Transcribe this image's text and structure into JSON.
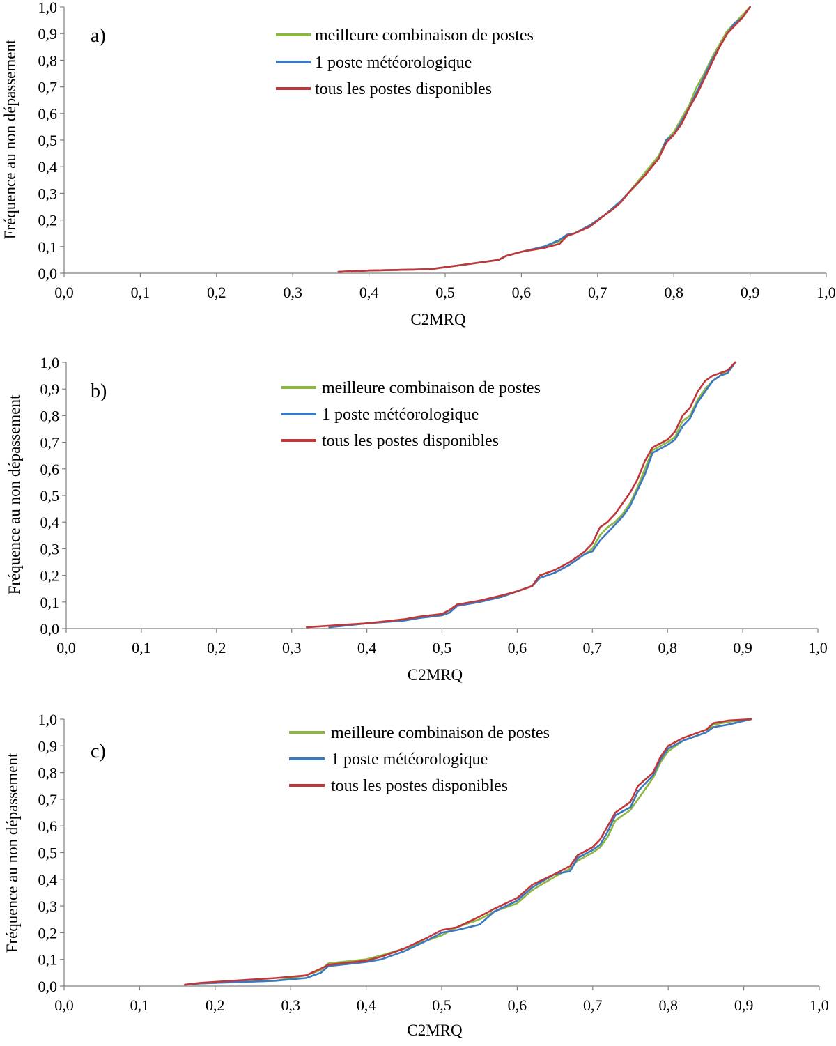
{
  "colors": {
    "green": "#8DB744",
    "blue": "#3A79C0",
    "red": "#C0373A"
  },
  "chart_data": [
    {
      "type": "line",
      "panel_label": "a)",
      "xlabel": "C2MRQ",
      "ylabel": "Fréquence au non dépassement",
      "xlim": [
        0,
        1
      ],
      "ylim": [
        0,
        1
      ],
      "x_ticks": [
        "0,0",
        "0,1",
        "0,2",
        "0,3",
        "0,4",
        "0,5",
        "0,6",
        "0,7",
        "0,8",
        "0,9",
        "1,0"
      ],
      "y_ticks": [
        "0,0",
        "0,1",
        "0,2",
        "0,3",
        "0,4",
        "0,5",
        "0,6",
        "0,7",
        "0,8",
        "0,9",
        "1,0"
      ],
      "legend_position": "top-center",
      "series": [
        {
          "name": "meilleure combinaison de postes",
          "color": "#8DB744",
          "x": [
            0.36,
            0.4,
            0.48,
            0.52,
            0.57,
            0.58,
            0.6,
            0.63,
            0.65,
            0.66,
            0.67,
            0.69,
            0.71,
            0.72,
            0.73,
            0.74,
            0.76,
            0.78,
            0.79,
            0.8,
            0.81,
            0.82,
            0.83,
            0.84,
            0.85,
            0.86,
            0.87,
            0.88,
            0.89,
            0.9
          ],
          "y": [
            0.005,
            0.01,
            0.015,
            0.03,
            0.05,
            0.065,
            0.08,
            0.1,
            0.12,
            0.14,
            0.15,
            0.18,
            0.22,
            0.24,
            0.27,
            0.3,
            0.37,
            0.44,
            0.5,
            0.53,
            0.58,
            0.63,
            0.7,
            0.75,
            0.81,
            0.86,
            0.91,
            0.94,
            0.97,
            1.0
          ]
        },
        {
          "name": "1 poste météorologique",
          "color": "#3A79C0",
          "x": [
            0.36,
            0.4,
            0.48,
            0.52,
            0.57,
            0.58,
            0.6,
            0.63,
            0.65,
            0.66,
            0.67,
            0.69,
            0.71,
            0.72,
            0.73,
            0.74,
            0.76,
            0.78,
            0.79,
            0.8,
            0.81,
            0.82,
            0.83,
            0.84,
            0.85,
            0.86,
            0.87,
            0.88,
            0.89,
            0.9
          ],
          "y": [
            0.005,
            0.01,
            0.015,
            0.03,
            0.05,
            0.065,
            0.08,
            0.1,
            0.125,
            0.145,
            0.15,
            0.18,
            0.22,
            0.245,
            0.27,
            0.3,
            0.36,
            0.43,
            0.5,
            0.52,
            0.57,
            0.62,
            0.68,
            0.74,
            0.8,
            0.85,
            0.9,
            0.94,
            0.96,
            1.0
          ]
        },
        {
          "name": "tous les postes disponibles",
          "color": "#C0373A",
          "x": [
            0.36,
            0.4,
            0.48,
            0.52,
            0.57,
            0.58,
            0.6,
            0.63,
            0.65,
            0.66,
            0.67,
            0.69,
            0.71,
            0.72,
            0.73,
            0.74,
            0.76,
            0.78,
            0.79,
            0.8,
            0.81,
            0.82,
            0.83,
            0.84,
            0.85,
            0.86,
            0.87,
            0.88,
            0.89,
            0.9
          ],
          "y": [
            0.005,
            0.01,
            0.015,
            0.03,
            0.05,
            0.065,
            0.08,
            0.095,
            0.11,
            0.14,
            0.15,
            0.175,
            0.22,
            0.24,
            0.265,
            0.3,
            0.36,
            0.43,
            0.49,
            0.52,
            0.56,
            0.62,
            0.67,
            0.73,
            0.79,
            0.85,
            0.9,
            0.93,
            0.96,
            1.0
          ]
        }
      ]
    },
    {
      "type": "line",
      "panel_label": "b)",
      "xlabel": "C2MRQ",
      "ylabel": "Fréquence au non dépassement",
      "xlim": [
        0,
        1
      ],
      "ylim": [
        0,
        1
      ],
      "x_ticks": [
        "0,0",
        "0,1",
        "0,2",
        "0,3",
        "0,4",
        "0,5",
        "0,6",
        "0,7",
        "0,8",
        "0,9",
        "1,0"
      ],
      "y_ticks": [
        "0,0",
        "0,1",
        "0,2",
        "0,3",
        "0,4",
        "0,5",
        "0,6",
        "0,7",
        "0,8",
        "0,9",
        "1,0"
      ],
      "legend_position": "top-center",
      "series": [
        {
          "name": "meilleure combinaison de postes",
          "color": "#8DB744",
          "x": [
            0.35,
            0.4,
            0.45,
            0.47,
            0.5,
            0.51,
            0.52,
            0.55,
            0.58,
            0.6,
            0.62,
            0.63,
            0.65,
            0.67,
            0.68,
            0.69,
            0.7,
            0.71,
            0.72,
            0.73,
            0.74,
            0.75,
            0.76,
            0.77,
            0.78,
            0.8,
            0.81,
            0.82,
            0.83,
            0.84,
            0.85,
            0.86,
            0.87,
            0.88,
            0.89
          ],
          "y": [
            0.005,
            0.02,
            0.03,
            0.04,
            0.05,
            0.06,
            0.09,
            0.1,
            0.12,
            0.14,
            0.16,
            0.19,
            0.21,
            0.24,
            0.26,
            0.28,
            0.3,
            0.35,
            0.38,
            0.4,
            0.43,
            0.47,
            0.53,
            0.6,
            0.67,
            0.7,
            0.72,
            0.78,
            0.8,
            0.86,
            0.9,
            0.93,
            0.95,
            0.97,
            1.0
          ]
        },
        {
          "name": "1 poste météorologique",
          "color": "#3A79C0",
          "x": [
            0.35,
            0.4,
            0.45,
            0.47,
            0.5,
            0.51,
            0.52,
            0.55,
            0.58,
            0.6,
            0.62,
            0.63,
            0.65,
            0.67,
            0.68,
            0.69,
            0.7,
            0.71,
            0.72,
            0.73,
            0.74,
            0.75,
            0.76,
            0.77,
            0.78,
            0.8,
            0.81,
            0.82,
            0.83,
            0.84,
            0.85,
            0.86,
            0.87,
            0.88,
            0.89
          ],
          "y": [
            0.005,
            0.02,
            0.03,
            0.04,
            0.05,
            0.06,
            0.085,
            0.1,
            0.12,
            0.14,
            0.16,
            0.19,
            0.21,
            0.24,
            0.26,
            0.28,
            0.29,
            0.33,
            0.36,
            0.39,
            0.42,
            0.46,
            0.52,
            0.58,
            0.66,
            0.69,
            0.71,
            0.76,
            0.79,
            0.85,
            0.89,
            0.93,
            0.95,
            0.96,
            1.0
          ]
        },
        {
          "name": "tous les postes disponibles",
          "color": "#C0373A",
          "x": [
            0.32,
            0.4,
            0.45,
            0.47,
            0.5,
            0.51,
            0.52,
            0.55,
            0.58,
            0.6,
            0.62,
            0.63,
            0.65,
            0.67,
            0.68,
            0.69,
            0.7,
            0.71,
            0.72,
            0.73,
            0.74,
            0.75,
            0.76,
            0.77,
            0.78,
            0.8,
            0.81,
            0.82,
            0.83,
            0.84,
            0.85,
            0.86,
            0.87,
            0.88,
            0.89
          ],
          "y": [
            0.005,
            0.02,
            0.035,
            0.045,
            0.055,
            0.07,
            0.09,
            0.105,
            0.125,
            0.14,
            0.16,
            0.2,
            0.22,
            0.25,
            0.27,
            0.29,
            0.32,
            0.38,
            0.4,
            0.43,
            0.47,
            0.51,
            0.56,
            0.63,
            0.68,
            0.71,
            0.74,
            0.8,
            0.83,
            0.89,
            0.93,
            0.95,
            0.96,
            0.97,
            1.0
          ]
        }
      ]
    },
    {
      "type": "line",
      "panel_label": "c)",
      "xlabel": "C2MRQ",
      "ylabel": "Fréquence au non dépassement",
      "xlim": [
        0,
        1
      ],
      "ylim": [
        0,
        1
      ],
      "x_ticks": [
        "0,0",
        "0,1",
        "0,2",
        "0,3",
        "0,4",
        "0,5",
        "0,6",
        "0,7",
        "0,8",
        "0,9",
        "1,0"
      ],
      "y_ticks": [
        "0,0",
        "0,1",
        "0,2",
        "0,3",
        "0,4",
        "0,5",
        "0,6",
        "0,7",
        "0,8",
        "0,9",
        "1,0"
      ],
      "legend_position": "top-center",
      "series": [
        {
          "name": "meilleure combinaison de postes",
          "color": "#8DB744",
          "x": [
            0.16,
            0.18,
            0.28,
            0.32,
            0.34,
            0.35,
            0.4,
            0.42,
            0.45,
            0.48,
            0.5,
            0.52,
            0.55,
            0.57,
            0.6,
            0.62,
            0.65,
            0.67,
            0.68,
            0.7,
            0.71,
            0.72,
            0.73,
            0.75,
            0.76,
            0.78,
            0.79,
            0.8,
            0.82,
            0.85,
            0.86,
            0.88,
            0.91
          ],
          "y": [
            0.005,
            0.01,
            0.02,
            0.04,
            0.06,
            0.085,
            0.1,
            0.115,
            0.14,
            0.17,
            0.19,
            0.22,
            0.25,
            0.28,
            0.31,
            0.36,
            0.41,
            0.44,
            0.47,
            0.5,
            0.52,
            0.56,
            0.62,
            0.66,
            0.7,
            0.78,
            0.84,
            0.88,
            0.92,
            0.95,
            0.98,
            0.99,
            1.0
          ]
        },
        {
          "name": "1 poste météorologique",
          "color": "#3A79C0",
          "x": [
            0.16,
            0.18,
            0.28,
            0.32,
            0.34,
            0.35,
            0.4,
            0.42,
            0.45,
            0.48,
            0.5,
            0.52,
            0.55,
            0.57,
            0.6,
            0.62,
            0.65,
            0.67,
            0.68,
            0.7,
            0.71,
            0.72,
            0.73,
            0.75,
            0.76,
            0.78,
            0.79,
            0.8,
            0.82,
            0.85,
            0.86,
            0.88,
            0.91
          ],
          "y": [
            0.005,
            0.01,
            0.02,
            0.03,
            0.05,
            0.075,
            0.09,
            0.1,
            0.13,
            0.17,
            0.2,
            0.21,
            0.23,
            0.28,
            0.32,
            0.37,
            0.42,
            0.43,
            0.48,
            0.51,
            0.53,
            0.58,
            0.64,
            0.67,
            0.73,
            0.79,
            0.85,
            0.89,
            0.92,
            0.95,
            0.97,
            0.98,
            1.0
          ]
        },
        {
          "name": "tous les postes disponibles",
          "color": "#C0373A",
          "x": [
            0.16,
            0.18,
            0.28,
            0.32,
            0.34,
            0.35,
            0.4,
            0.42,
            0.45,
            0.48,
            0.5,
            0.52,
            0.55,
            0.57,
            0.6,
            0.62,
            0.65,
            0.67,
            0.68,
            0.7,
            0.71,
            0.72,
            0.73,
            0.75,
            0.76,
            0.78,
            0.79,
            0.8,
            0.82,
            0.85,
            0.86,
            0.88,
            0.91
          ],
          "y": [
            0.005,
            0.012,
            0.03,
            0.04,
            0.065,
            0.08,
            0.095,
            0.11,
            0.14,
            0.18,
            0.21,
            0.22,
            0.26,
            0.29,
            0.33,
            0.38,
            0.42,
            0.45,
            0.49,
            0.52,
            0.55,
            0.6,
            0.65,
            0.69,
            0.75,
            0.8,
            0.86,
            0.9,
            0.93,
            0.96,
            0.985,
            0.995,
            1.0
          ]
        }
      ]
    }
  ]
}
